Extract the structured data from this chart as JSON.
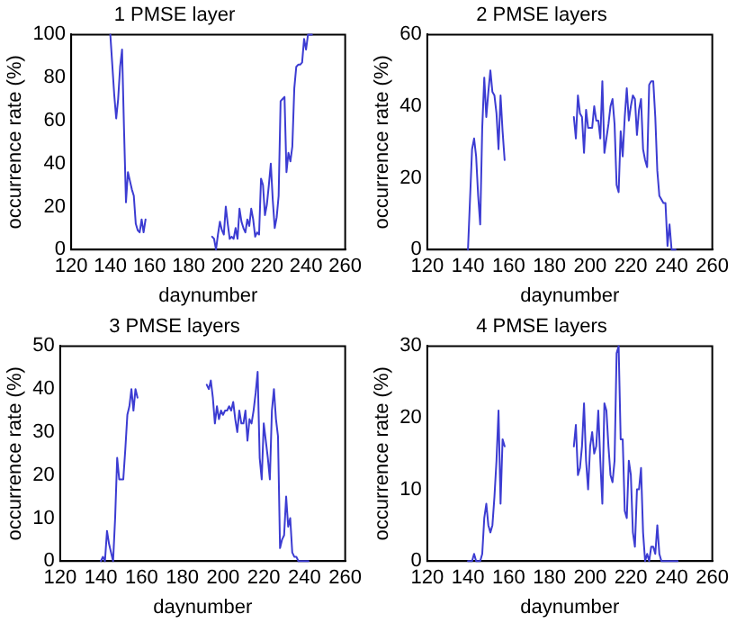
{
  "chart_data": [
    {
      "type": "line",
      "title": "1 PMSE layer",
      "xlabel": "daynumber",
      "ylabel": "occurrence rate (%)",
      "xlim": [
        120,
        260
      ],
      "xticks": [
        120,
        140,
        160,
        180,
        200,
        220,
        240,
        260
      ],
      "ylim": [
        0,
        100
      ],
      "yticks": [
        0,
        20,
        40,
        60,
        80,
        100
      ],
      "grid": false,
      "line_style": "solid",
      "series": [
        {
          "color": "#3c3cd2",
          "x": [
            140,
            141,
            142,
            143,
            144,
            145,
            146,
            147,
            148,
            149,
            150,
            151,
            152,
            153,
            154,
            155,
            156,
            157,
            158,
            175,
            192,
            193,
            194,
            195,
            196,
            197,
            198,
            199,
            200,
            201,
            202,
            203,
            204,
            205,
            206,
            207,
            208,
            209,
            210,
            211,
            212,
            213,
            214,
            215,
            216,
            217,
            218,
            219,
            220,
            221,
            222,
            223,
            224,
            225,
            226,
            227,
            228,
            229,
            230,
            231,
            232,
            233,
            234,
            235,
            236,
            237,
            238,
            239,
            240,
            241,
            242,
            243
          ],
          "values": [
            100,
            86,
            72,
            61,
            70,
            85,
            93,
            56,
            22,
            36,
            32,
            28,
            25,
            12,
            9,
            8,
            14,
            8,
            14,
            null,
            6,
            5,
            0,
            7,
            13,
            9,
            7,
            20,
            12,
            5,
            6,
            5,
            10,
            5,
            19,
            13,
            10,
            8,
            14,
            11,
            19,
            14,
            6,
            8,
            7,
            33,
            30,
            16,
            21,
            30,
            40,
            23,
            10,
            15,
            25,
            69,
            70,
            71,
            36,
            45,
            41,
            48,
            75,
            85,
            86,
            86,
            87,
            98,
            93,
            100,
            100,
            100
          ]
        }
      ]
    },
    {
      "type": "line",
      "title": "2 PMSE layers",
      "xlabel": "daynumber",
      "ylabel": "occurrence rate (%)",
      "xlim": [
        120,
        260
      ],
      "xticks": [
        120,
        140,
        160,
        180,
        200,
        220,
        240,
        260
      ],
      "ylim": [
        0,
        60
      ],
      "yticks": [
        0,
        20,
        40,
        60
      ],
      "grid": false,
      "line_style": "solid",
      "series": [
        {
          "color": "#3c3cd2",
          "x": [
            140,
            141,
            142,
            143,
            144,
            145,
            146,
            147,
            148,
            149,
            150,
            151,
            152,
            153,
            154,
            155,
            156,
            157,
            158,
            175,
            192,
            193,
            194,
            195,
            196,
            197,
            198,
            199,
            200,
            201,
            202,
            203,
            204,
            205,
            206,
            207,
            208,
            209,
            210,
            211,
            212,
            213,
            214,
            215,
            216,
            217,
            218,
            219,
            220,
            221,
            222,
            223,
            224,
            225,
            226,
            227,
            228,
            229,
            230,
            231,
            232,
            233,
            234,
            235,
            236,
            237,
            238,
            239,
            240,
            241,
            242
          ],
          "values": [
            0,
            14,
            28,
            31,
            26,
            15,
            7,
            34,
            48,
            37,
            44,
            50,
            44,
            43,
            38,
            28,
            43,
            33,
            25,
            null,
            37,
            31,
            43,
            38,
            37,
            27,
            39,
            34,
            34,
            34,
            40,
            36,
            36,
            31,
            47,
            27,
            31,
            35,
            40,
            42,
            35,
            18,
            16,
            33,
            26,
            37,
            45,
            36,
            40,
            43,
            42,
            32,
            39,
            42,
            28,
            25,
            23,
            46,
            47,
            47,
            37,
            22,
            15,
            14,
            13,
            13,
            1,
            7,
            0,
            0,
            0
          ]
        }
      ]
    },
    {
      "type": "line",
      "title": "3 PMSE layers",
      "xlabel": "daynumber",
      "ylabel": "occurrence rate (%)",
      "xlim": [
        120,
        260
      ],
      "xticks": [
        120,
        140,
        160,
        180,
        200,
        220,
        240,
        260
      ],
      "ylim": [
        0,
        50
      ],
      "yticks": [
        0,
        10,
        20,
        30,
        40,
        50
      ],
      "grid": false,
      "line_style": "solid",
      "series": [
        {
          "color": "#3c3cd2",
          "x": [
            140,
            141,
            142,
            143,
            144,
            145,
            146,
            147,
            148,
            149,
            150,
            151,
            152,
            153,
            154,
            155,
            156,
            157,
            158,
            175,
            192,
            193,
            194,
            195,
            196,
            197,
            198,
            199,
            200,
            201,
            202,
            203,
            204,
            205,
            206,
            207,
            208,
            209,
            210,
            211,
            212,
            213,
            214,
            215,
            216,
            217,
            218,
            219,
            220,
            221,
            222,
            223,
            224,
            225,
            226,
            227,
            228,
            229,
            230,
            231,
            232,
            233,
            234,
            235,
            236,
            237,
            238,
            239,
            240,
            241,
            242
          ],
          "values": [
            0,
            1,
            0,
            7,
            4,
            2,
            0,
            10,
            24,
            19,
            19,
            19,
            26,
            34,
            36,
            40,
            35,
            40,
            38,
            null,
            41,
            40,
            42,
            38,
            32,
            36,
            33,
            35,
            34,
            35,
            35,
            36,
            35,
            37,
            33,
            30,
            35,
            32,
            32,
            35,
            28,
            33,
            32,
            35,
            39,
            44,
            24,
            19,
            32,
            28,
            24,
            19,
            35,
            40,
            33,
            29,
            3,
            5,
            6,
            15,
            8,
            10,
            2,
            1,
            1,
            0,
            0,
            0,
            0,
            0,
            0
          ]
        }
      ]
    },
    {
      "type": "line",
      "title": "4 PMSE layers",
      "xlabel": "daynumber",
      "ylabel": "occurrence rate (%)",
      "xlim": [
        120,
        260
      ],
      "xticks": [
        120,
        140,
        160,
        180,
        200,
        220,
        240,
        260
      ],
      "ylim": [
        0,
        30
      ],
      "yticks": [
        0,
        10,
        20,
        30
      ],
      "grid": false,
      "line_style": "solid",
      "series": [
        {
          "color": "#3c3cd2",
          "x": [
            140,
            141,
            142,
            143,
            144,
            145,
            146,
            147,
            148,
            149,
            150,
            151,
            152,
            153,
            154,
            155,
            156,
            157,
            158,
            175,
            192,
            193,
            194,
            195,
            196,
            197,
            198,
            199,
            200,
            201,
            202,
            203,
            204,
            205,
            206,
            207,
            208,
            209,
            210,
            211,
            212,
            213,
            214,
            215,
            216,
            217,
            218,
            219,
            220,
            221,
            222,
            223,
            224,
            225,
            226,
            227,
            228,
            229,
            230,
            231,
            232,
            233,
            234,
            235,
            236,
            237,
            238,
            239,
            240,
            241,
            242,
            243
          ],
          "values": [
            0,
            0,
            0,
            1,
            0,
            0,
            0,
            1,
            6,
            8,
            5,
            4,
            5,
            9,
            14,
            21,
            8,
            17,
            16,
            null,
            16,
            19,
            12,
            13,
            16,
            22,
            14,
            10,
            16,
            18,
            15,
            16,
            21,
            14,
            8,
            22,
            21,
            16,
            12,
            11,
            14,
            29,
            30,
            17,
            17,
            7,
            6,
            14,
            12,
            4,
            2,
            10,
            10,
            13,
            4,
            0,
            1,
            0,
            2,
            2,
            1,
            5,
            1,
            0,
            0,
            0,
            0,
            0,
            0,
            0,
            0,
            0
          ]
        }
      ]
    }
  ]
}
